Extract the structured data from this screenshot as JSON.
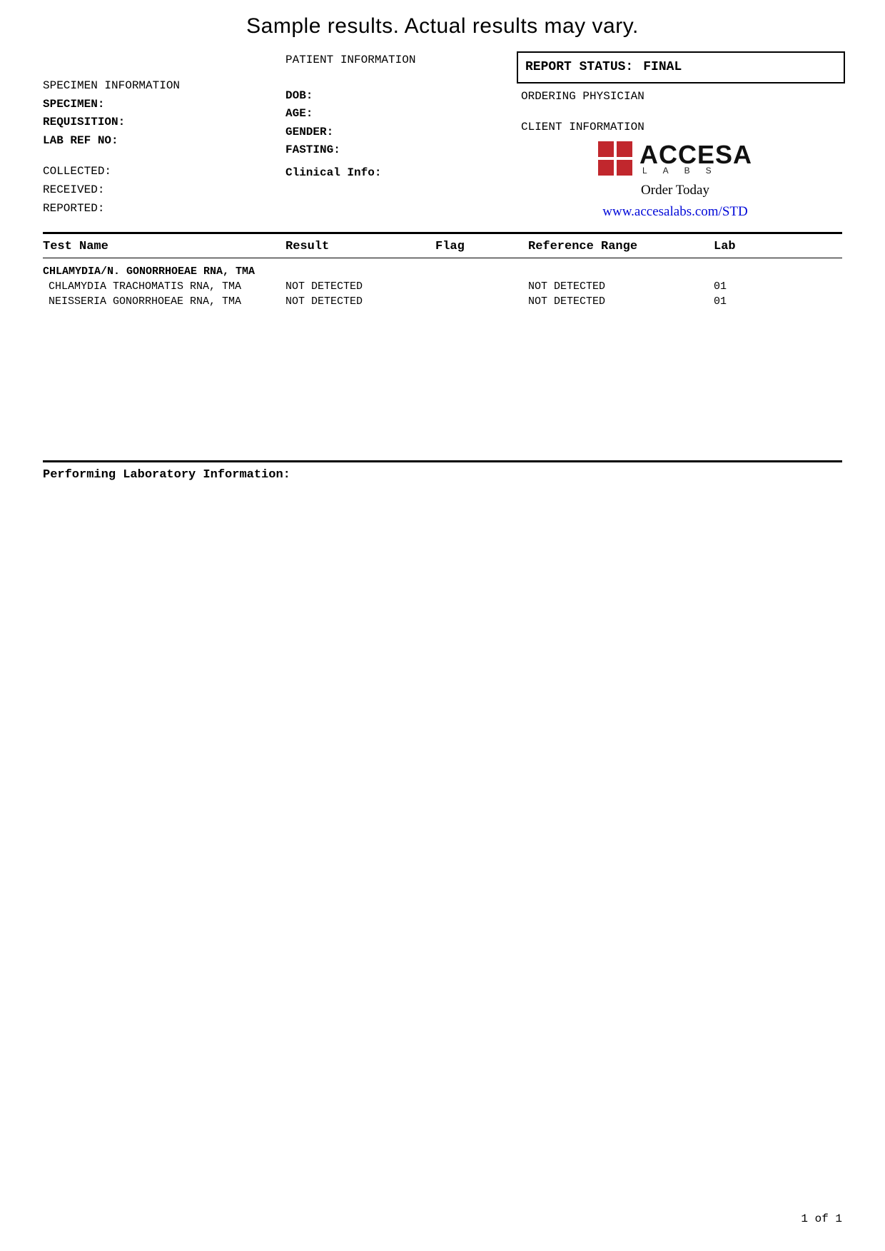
{
  "banner": "Sample results. Actual results may vary.",
  "specimen": {
    "section_label": "SPECIMEN INFORMATION",
    "specimen_label": "SPECIMEN:",
    "requisition_label": "REQUISITION:",
    "labref_label": "LAB REF NO:",
    "collected_label": "COLLECTED:",
    "received_label": "RECEIVED:",
    "reported_label": "REPORTED:"
  },
  "patient": {
    "section_label": "PATIENT INFORMATION",
    "dob_label": "DOB:",
    "age_label": "AGE:",
    "gender_label": "GENDER:",
    "fasting_label": "FASTING:",
    "clinical_label": "Clinical Info:"
  },
  "report": {
    "status_label": "REPORT STATUS:",
    "status_value": "FINAL",
    "ordering_label": "ORDERING PHYSICIAN",
    "client_label": "CLIENT INFORMATION"
  },
  "logo": {
    "name": "ACCESA",
    "sub": "LABS",
    "square_color": "#c1272d"
  },
  "order": {
    "cta": "Order Today",
    "link_text": "www.accesalabs.com/STD",
    "link_color": "#0008d8"
  },
  "table": {
    "headers": {
      "test": "Test Name",
      "result": "Result",
      "flag": "Flag",
      "ref": "Reference Range",
      "lab": "Lab"
    },
    "panel": "CHLAMYDIA/N. GONORRHOEAE RNA, TMA",
    "rows": [
      {
        "test": "CHLAMYDIA TRACHOMATIS RNA, TMA",
        "result": "NOT DETECTED",
        "flag": "",
        "ref": "NOT DETECTED",
        "lab": "01"
      },
      {
        "test": "NEISSERIA GONORRHOEAE RNA, TMA",
        "result": "NOT DETECTED",
        "flag": "",
        "ref": "NOT DETECTED",
        "lab": "01"
      }
    ]
  },
  "perf_lab_label": "Performing Laboratory Information:",
  "page_num": "1 of 1",
  "colors": {
    "text": "#000000",
    "background": "#ffffff"
  }
}
